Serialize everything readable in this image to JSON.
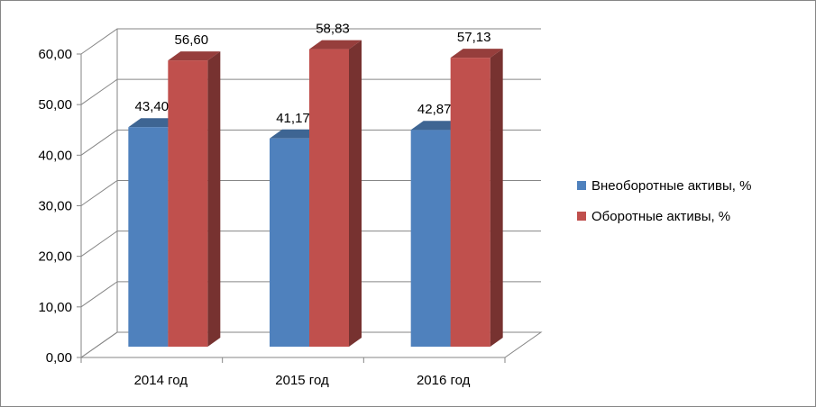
{
  "chart_data": {
    "type": "bar",
    "categories": [
      "2014 год",
      "2015 год",
      "2016 год"
    ],
    "series": [
      {
        "name": "Внеоборотные активы, %",
        "values": [
          43.4,
          41.17,
          42.87
        ],
        "labels": [
          "43,40",
          "41,17",
          "42,87"
        ],
        "color": "#4F81BD"
      },
      {
        "name": "Оборотные активы, %",
        "values": [
          56.6,
          58.83,
          57.13
        ],
        "labels": [
          "56,60",
          "58,83",
          "57,13"
        ],
        "color": "#C0504D"
      }
    ],
    "yticks": [
      "0,00",
      "10,00",
      "20,00",
      "30,00",
      "40,00",
      "50,00",
      "60,00"
    ],
    "ylim": [
      0,
      60
    ],
    "grid": true,
    "legend": "right",
    "style": "3d-column"
  }
}
